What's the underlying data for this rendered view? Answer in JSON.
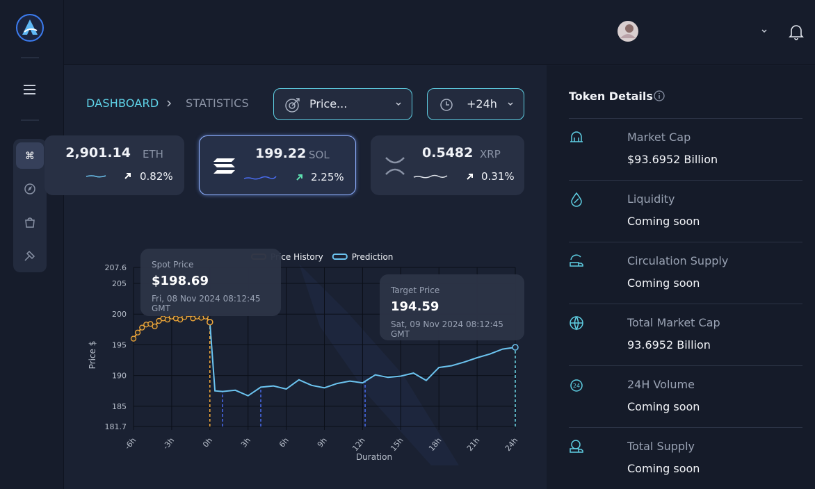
{
  "breadcrumb": {
    "items": [
      "DASHBOARD",
      "STATISTICS"
    ]
  },
  "filters": {
    "metric": "Price...",
    "range": "+24h"
  },
  "tokens": [
    {
      "price": "2,901.14",
      "symbol": "ETH",
      "change": "0.82%"
    },
    {
      "price": "199.22",
      "symbol": "SOL",
      "change": "2.25%"
    },
    {
      "price": "0.5482",
      "symbol": "XRP",
      "change": "0.31%"
    }
  ],
  "chart_data": {
    "type": "line",
    "xlabel": "Duration",
    "ylabel": "Price $",
    "xlim": [
      -6,
      24
    ],
    "xticks": [
      {
        "value": -6,
        "label": "-6h"
      },
      {
        "value": -3,
        "label": "-3h"
      },
      {
        "value": 0,
        "label": "0h"
      },
      {
        "value": 3,
        "label": "3h"
      },
      {
        "value": 6,
        "label": "6h"
      },
      {
        "value": 9,
        "label": "9h"
      },
      {
        "value": 12,
        "label": "12h"
      },
      {
        "value": 15,
        "label": "15h"
      },
      {
        "value": 18,
        "label": "18h"
      },
      {
        "value": 21,
        "label": "21h"
      },
      {
        "value": 24,
        "label": "24h"
      }
    ],
    "ylim": [
      181.7,
      207.6
    ],
    "yticks": [
      181.7,
      185,
      190,
      195,
      200,
      205,
      207.6
    ],
    "grid": true,
    "series": [
      {
        "name": "Price History",
        "color": "#f2a93b",
        "marker": "circle",
        "x": [
          -6,
          -5.67,
          -5.33,
          -5,
          -4.67,
          -4.33,
          -4,
          -3.67,
          -3.33,
          -3,
          -2.67,
          -2.33,
          -2,
          -1.67,
          -1.33,
          -1,
          -0.67,
          -0.33,
          0
        ],
        "values": [
          196.0,
          197.0,
          197.8,
          198.3,
          198.4,
          198.0,
          198.9,
          199.3,
          199.1,
          199.6,
          199.3,
          199.1,
          199.5,
          200.0,
          199.3,
          199.6,
          199.4,
          199.6,
          198.69
        ]
      },
      {
        "name": "Prediction",
        "color": "#6cc4f0",
        "x": [
          0,
          0.4,
          1,
          2,
          3,
          4,
          5,
          6,
          7,
          8,
          9,
          10,
          11,
          12,
          13,
          14,
          15,
          16,
          17,
          18,
          19,
          20,
          21,
          22,
          23,
          24
        ],
        "values": [
          198.69,
          187.5,
          187.4,
          187.6,
          186.7,
          188.1,
          188.3,
          187.8,
          189.3,
          188.4,
          188.0,
          188.7,
          189.1,
          188.8,
          190.1,
          189.7,
          189.9,
          190.4,
          189.2,
          191.3,
          191.6,
          192.2,
          192.9,
          193.5,
          194.3,
          194.59
        ]
      }
    ],
    "reference_lines": [
      {
        "x": 0,
        "color": "#f2a93b"
      },
      {
        "x": 1,
        "color": "#4a6cf0"
      },
      {
        "x": 4,
        "color": "#4a6cf0"
      },
      {
        "x": 12.2,
        "color": "#4a6cf0"
      },
      {
        "x": 24,
        "color": "#6cd8e8"
      }
    ],
    "annotations": [
      {
        "label": "Spot Price",
        "x": 0,
        "value": 198.69,
        "value_label": "$198.69",
        "date": "Fri, 08 Nov 2024 08:12:45 GMT"
      },
      {
        "label": "Target Price",
        "x": 24,
        "value": 194.59,
        "value_label": "194.59",
        "date": "Sat, 09 Nov 2024 08:12:45 GMT"
      }
    ]
  },
  "token_details": {
    "title": "Token Details",
    "rows": [
      {
        "label": "Market Cap",
        "value": "$93.6952 Billion"
      },
      {
        "label": "Liquidity",
        "value": "Coming soon"
      },
      {
        "label": "Circulation Supply",
        "value": "Coming soon"
      },
      {
        "label": "Total Market Cap",
        "value": "93.6952 Billion"
      },
      {
        "label": "24H Volume",
        "value": "Coming soon"
      },
      {
        "label": "Total Supply",
        "value": "Coming soon"
      }
    ]
  }
}
